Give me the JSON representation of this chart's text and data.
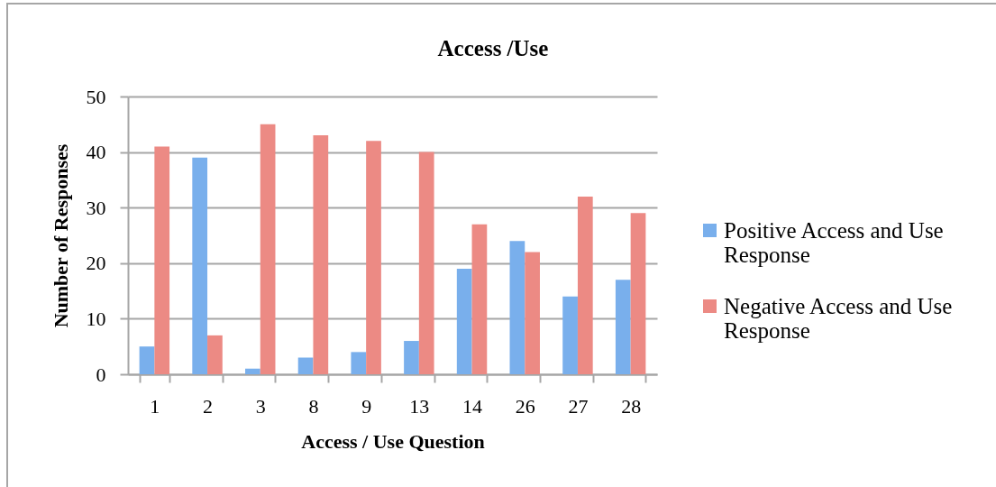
{
  "chart_data": {
    "type": "bar",
    "title": "Access /Use",
    "xlabel": "Access / Use Question",
    "ylabel": "Number of Responses",
    "categories": [
      "1",
      "2",
      "3",
      "8",
      "9",
      "13",
      "14",
      "26",
      "27",
      "28"
    ],
    "series": [
      {
        "name": "Positive Access and Use Response",
        "color": "#79afec",
        "values": [
          5,
          39,
          1,
          3,
          4,
          6,
          19,
          24,
          14,
          17
        ]
      },
      {
        "name": "Negative Access and Use Response",
        "color": "#ec8a84",
        "values": [
          41,
          7,
          45,
          43,
          42,
          40,
          27,
          22,
          32,
          29
        ]
      }
    ],
    "ylim": [
      0,
      50
    ],
    "yticks": [
      0,
      10,
      20,
      30,
      40,
      50
    ],
    "grid": "y",
    "legend": "right"
  }
}
